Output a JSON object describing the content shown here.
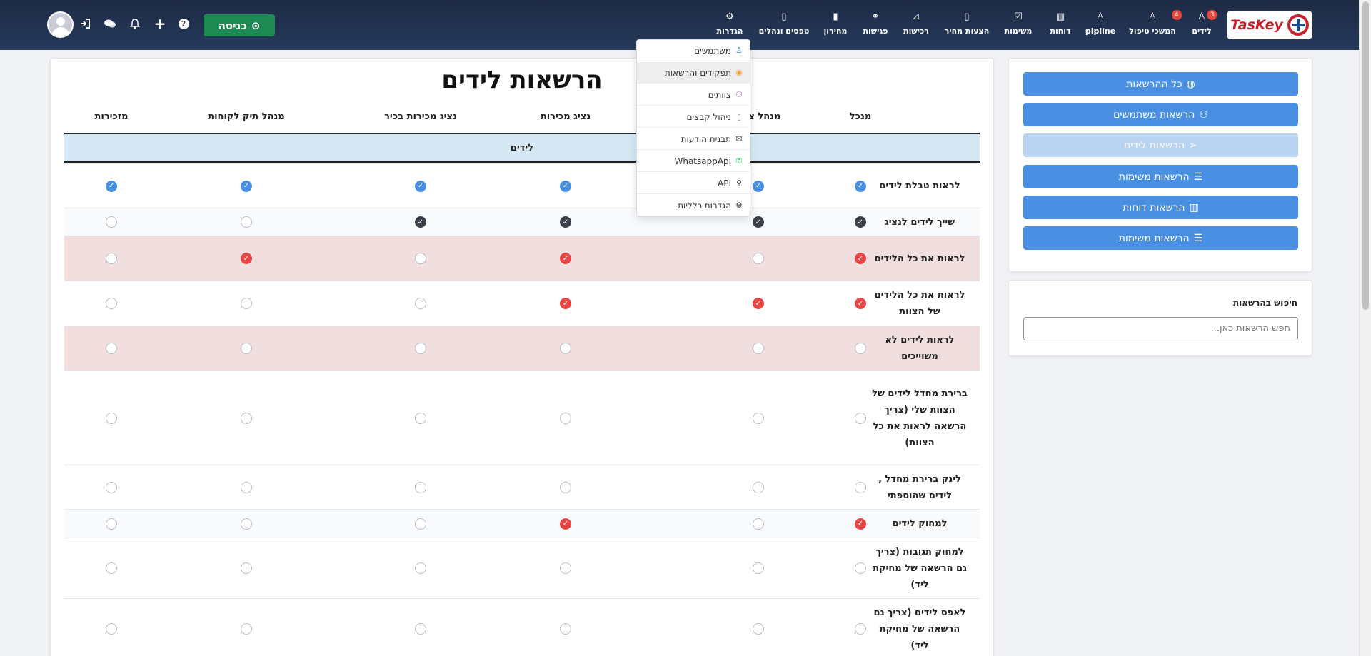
{
  "app": {
    "logo_text": "TasKey"
  },
  "nav": {
    "items": [
      {
        "id": "leads",
        "label": "לידים",
        "icon": "user-icon",
        "badge": "3"
      },
      {
        "id": "followups",
        "label": "המשכי טיפול",
        "icon": "user-icon",
        "badge": "4"
      },
      {
        "id": "pipeline",
        "label": "pipline",
        "icon": "user-icon",
        "badge": ""
      },
      {
        "id": "reports",
        "label": "דוחות",
        "icon": "chart-icon",
        "badge": ""
      },
      {
        "id": "tasks",
        "label": "משימות",
        "icon": "check-icon",
        "badge": ""
      },
      {
        "id": "quotes",
        "label": "הצעות מחיר",
        "icon": "file-icon",
        "badge": ""
      },
      {
        "id": "purchases",
        "label": "רכישות",
        "icon": "tag-icon",
        "badge": ""
      },
      {
        "id": "meetings",
        "label": "פגישות",
        "icon": "handshake-icon",
        "badge": ""
      },
      {
        "id": "pricelist",
        "label": "מחירון",
        "icon": "barcode-icon",
        "badge": ""
      },
      {
        "id": "forms",
        "label": "טפסים ונהלים",
        "icon": "book-icon",
        "badge": ""
      },
      {
        "id": "settings",
        "label": "הגדרות",
        "icon": "gear-icon",
        "badge": ""
      }
    ],
    "enter_button": "כניסה"
  },
  "settings_menu": [
    {
      "label": "משתמשים",
      "icon": "user-icon",
      "icon_color": "#4a90e2",
      "active": false
    },
    {
      "label": "תפקידים והרשאות",
      "icon": "eye-icon",
      "icon_color": "#f0a53a",
      "active": true
    },
    {
      "label": "צוותים",
      "icon": "users-icon",
      "icon_color": "#9b59b6",
      "active": false
    },
    {
      "label": "ניהול קבצים",
      "icon": "file-icon",
      "icon_color": "#555555",
      "active": false
    },
    {
      "label": "תבנית הודעות",
      "icon": "envelope-icon",
      "icon_color": "#555555",
      "active": false
    },
    {
      "label": "WhatsappApi",
      "icon": "whatsapp-icon",
      "icon_color": "#25d366",
      "active": false
    },
    {
      "label": "API",
      "icon": "link-icon",
      "icon_color": "#555555",
      "active": false
    },
    {
      "label": "הגדרות כלליות",
      "icon": "gear-icon",
      "icon_color": "#333333",
      "active": false
    }
  ],
  "page": {
    "title": "הרשאות לידים",
    "roles": [
      "מנכל",
      "מנהל צוות",
      "נציג מכירות",
      "נציג מכירות בכיר",
      "מנהל תיק לקוחות",
      "מזכירות"
    ],
    "section": "לידים",
    "rows": [
      {
        "label": "לראות טבלת לידים",
        "values": [
          "blue",
          "blue",
          "blue",
          "blue",
          "blue",
          "blue"
        ]
      },
      {
        "label": "שייך לידים לנציג",
        "values": [
          "dark",
          "dark",
          "dark",
          "dark",
          "off",
          "off"
        ]
      },
      {
        "label": "לראות את כל הלידים",
        "values": [
          "red",
          "off",
          "red",
          "off",
          "red",
          "off"
        ]
      },
      {
        "label": "לראות את כל הלידים של הצוות",
        "values": [
          "red",
          "red",
          "red",
          "off",
          "off",
          "off"
        ]
      },
      {
        "label": "לראות לידים לא משוייכים",
        "values": [
          "off",
          "off",
          "off",
          "off",
          "off",
          "off"
        ]
      },
      {
        "label": "ברירת מחדל לידים של הצוות שלי (צריך הרשאה לראות את כל הצוות)",
        "values": [
          "off",
          "off",
          "off",
          "off",
          "off",
          "off"
        ]
      },
      {
        "label": "לינק ברירת מחדל , לידים שהוספתי",
        "values": [
          "off",
          "off",
          "off",
          "off",
          "off",
          "off"
        ]
      },
      {
        "label": "למחוק לידים",
        "values": [
          "red",
          "off",
          "red",
          "off",
          "off",
          "off"
        ]
      },
      {
        "label": "למחוק תגובות (צריך גם הרשאה של מחיקת ליד)",
        "values": [
          "off",
          "off",
          "off",
          "off",
          "off",
          "off"
        ]
      },
      {
        "label": "לאפס לידים (צריך גם הרשאה של מחיקת ליד)",
        "values": [
          "off",
          "off",
          "off",
          "off",
          "off",
          "off"
        ]
      }
    ]
  },
  "sidebar": {
    "buttons": [
      {
        "label": "כל ההרשאות",
        "icon": "eye-slash-icon",
        "disabled": false
      },
      {
        "label": "הרשאות משתמשים",
        "icon": "users-icon",
        "disabled": false
      },
      {
        "label": "הרשאות לידים",
        "icon": "paper-plane-icon",
        "disabled": true
      },
      {
        "label": "הרשאות משימות",
        "icon": "server-icon",
        "disabled": false
      },
      {
        "label": "הרשאות דוחות",
        "icon": "chart-icon",
        "disabled": false
      },
      {
        "label": "הרשאות משימות",
        "icon": "server-icon",
        "disabled": false
      }
    ],
    "search_label": "חיפוש בהרשאות",
    "search_placeholder": "חפש הרשאות כאן..."
  },
  "colors": {
    "accent": "#4a90e2",
    "nav_bg": "#1d2a44",
    "enter": "#1e8a53",
    "check_blue": "#4a90e2",
    "check_dark": "#3d4048",
    "check_red": "#e84545",
    "pink_row": "#f1dede",
    "section_bg": "#d5e8f3"
  }
}
